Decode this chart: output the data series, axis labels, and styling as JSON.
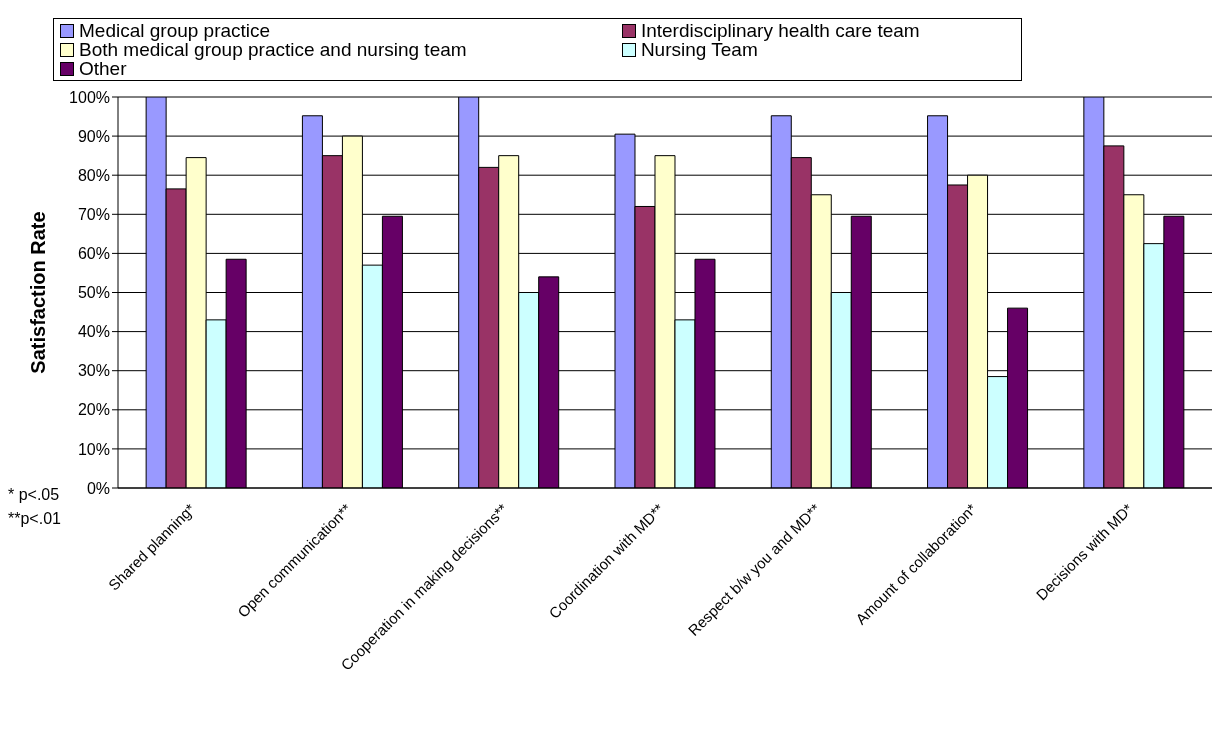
{
  "chart_data": {
    "type": "bar",
    "ylabel": "Satisfaction Rate",
    "categories": [
      "Shared planning*",
      "Open communication**",
      "Cooperation in making decisions**",
      "Coordination with MD**",
      "Respect b/w you and MD**",
      "Amount of collaboration*",
      "Decisions with MD*"
    ],
    "series": [
      {
        "name": "Medical group practice",
        "color": "#9999ff",
        "values": [
          100,
          95.2,
          100,
          90.5,
          95.2,
          95.2,
          100
        ]
      },
      {
        "name": "Interdisciplinary health care team",
        "color": "#993366",
        "values": [
          76.5,
          85,
          82,
          72,
          84.5,
          77.5,
          87.5
        ]
      },
      {
        "name": "Both medical group practice and nursing team",
        "color": "#ffffcc",
        "values": [
          84.5,
          90,
          85,
          85,
          75,
          80,
          75
        ]
      },
      {
        "name": "Nursing Team",
        "color": "#ccffff",
        "values": [
          43,
          57,
          50,
          43,
          50,
          28.5,
          62.5
        ]
      },
      {
        "name": "Other",
        "color": "#660066",
        "values": [
          58.5,
          69.5,
          54,
          58.5,
          69.5,
          46,
          69.5
        ]
      }
    ],
    "ylim": [
      0,
      100
    ],
    "yticks": [
      {
        "value": 0,
        "label": "0%"
      },
      {
        "value": 10,
        "label": "10%"
      },
      {
        "value": 20,
        "label": "20%"
      },
      {
        "value": 30,
        "label": "30%"
      },
      {
        "value": 40,
        "label": "40%"
      },
      {
        "value": 50,
        "label": "50%"
      },
      {
        "value": 60,
        "label": "60%"
      },
      {
        "value": 70,
        "label": "70%"
      },
      {
        "value": 80,
        "label": "80%"
      },
      {
        "value": 90,
        "label": "90%"
      },
      {
        "value": 100,
        "label": "100%"
      }
    ],
    "grid": "y",
    "legend": "top",
    "annotations": [
      "* p<.05",
      "**p<.01"
    ]
  }
}
